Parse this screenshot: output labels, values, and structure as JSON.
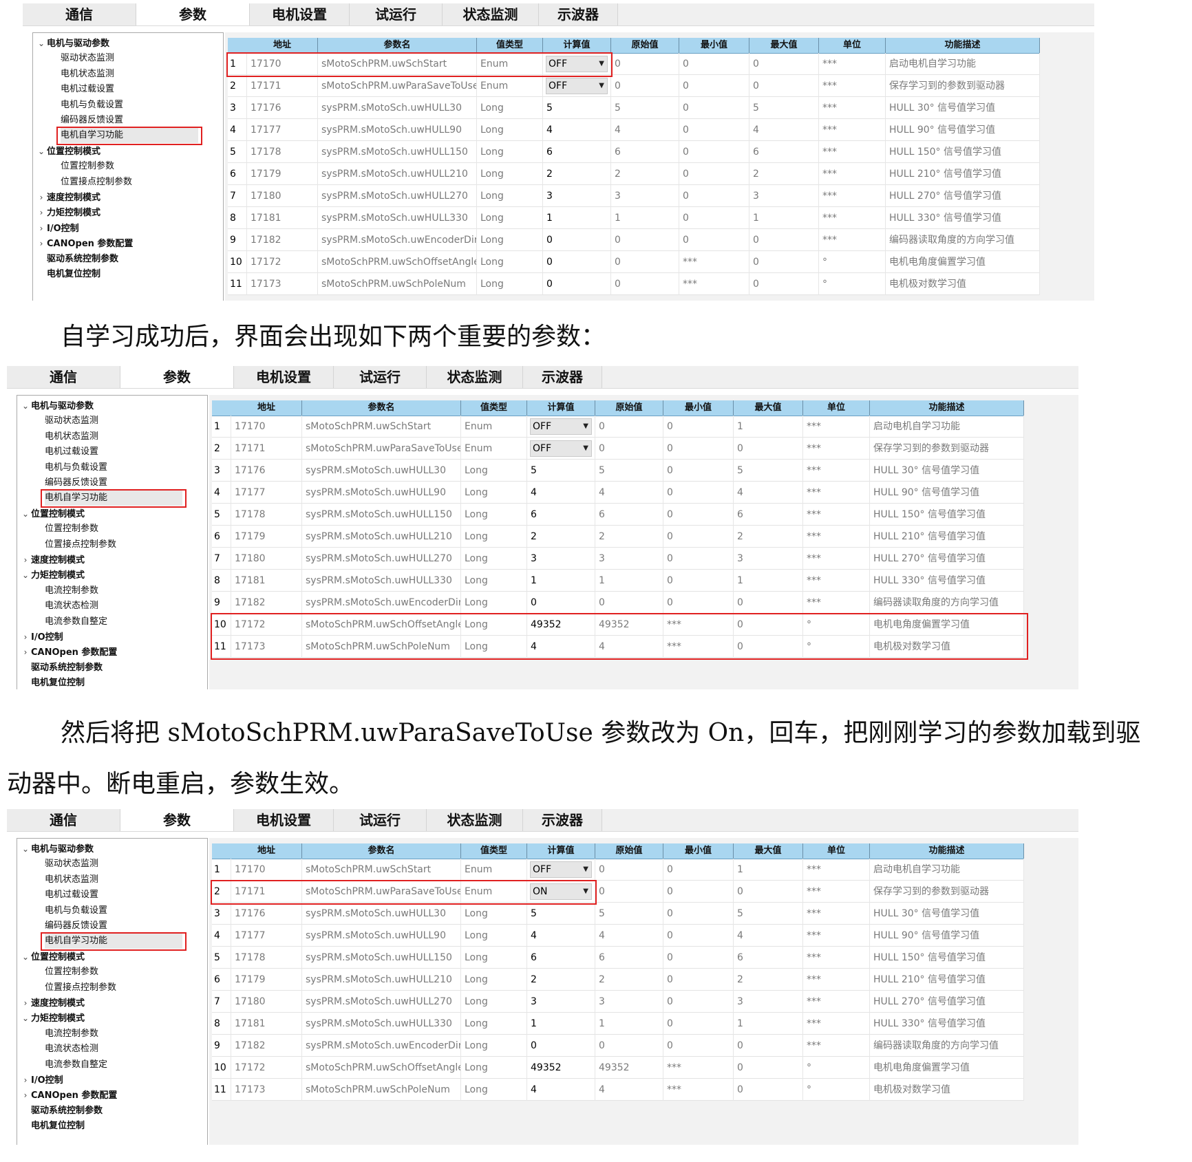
{
  "tabs": [
    "通信",
    "参数",
    "电机设置",
    "试运行",
    "状态监测",
    "示波器"
  ],
  "columns": [
    "地址",
    "参数名",
    "值类型",
    "计算值",
    "原始值",
    "最小值",
    "最大值",
    "单位",
    "功能描述"
  ],
  "paragraphs": {
    "p1": "自学习成功后，界面会出现如下两个重要的参数：",
    "p2": "然后将把 sMotoSchPRM.uwParaSaveToUse  参数改为 On，回车，把刚刚学习的参数加载到驱",
    "p3": "动器中。断电重启，参数生效。"
  },
  "screens": [
    {
      "tree": [
        {
          "label": "电机与驱动参数",
          "level": 0,
          "caret": "down"
        },
        {
          "label": "驱动状态监测",
          "level": 1
        },
        {
          "label": "电机状态监测",
          "level": 1
        },
        {
          "label": "电机过载设置",
          "level": 1
        },
        {
          "label": "电机与负载设置",
          "level": 1
        },
        {
          "label": "编码器反馈设置",
          "level": 1
        },
        {
          "label": "电机自学习功能",
          "level": 1,
          "selected": true
        },
        {
          "label": "位置控制模式",
          "level": 0,
          "caret": "down"
        },
        {
          "label": "位置控制参数",
          "level": 1
        },
        {
          "label": "位置接点控制参数",
          "level": 1
        },
        {
          "label": "速度控制模式",
          "level": 0,
          "caret": "right"
        },
        {
          "label": "力矩控制模式",
          "level": 0,
          "caret": "right"
        },
        {
          "label": "I/O控制",
          "level": 0,
          "caret": "right"
        },
        {
          "label": "CANOpen 参数配置",
          "level": 0,
          "caret": "right"
        },
        {
          "label": "驱动系统控制参数",
          "level": 0
        },
        {
          "label": "电机复位控制",
          "level": 0
        }
      ],
      "rows": [
        [
          "1",
          "17170",
          "sMotoSchPRM.uwSchStart",
          "Enum",
          "OFF",
          "0",
          "0",
          "0",
          "***",
          "启动电机自学习功能"
        ],
        [
          "2",
          "17171",
          "sMotoSchPRM.uwParaSaveToUse",
          "Enum",
          "OFF",
          "0",
          "0",
          "0",
          "***",
          "保存学习到的参数到驱动器"
        ],
        [
          "3",
          "17176",
          "sysPRM.sMotoSch.uwHULL30",
          "Long",
          "5",
          "5",
          "0",
          "5",
          "***",
          "HULL 30° 信号值学习值"
        ],
        [
          "4",
          "17177",
          "sysPRM.sMotoSch.uwHULL90",
          "Long",
          "4",
          "4",
          "0",
          "4",
          "***",
          "HULL 90° 信号值学习值"
        ],
        [
          "5",
          "17178",
          "sysPRM.sMotoSch.uwHULL150",
          "Long",
          "6",
          "6",
          "0",
          "6",
          "***",
          "HULL 150° 信号值学习值"
        ],
        [
          "6",
          "17179",
          "sysPRM.sMotoSch.uwHULL210",
          "Long",
          "2",
          "2",
          "0",
          "2",
          "***",
          "HULL 210° 信号值学习值"
        ],
        [
          "7",
          "17180",
          "sysPRM.sMotoSch.uwHULL270",
          "Long",
          "3",
          "3",
          "0",
          "3",
          "***",
          "HULL 270° 信号值学习值"
        ],
        [
          "8",
          "17181",
          "sysPRM.sMotoSch.uwHULL330",
          "Long",
          "1",
          "1",
          "0",
          "1",
          "***",
          "HULL 330° 信号值学习值"
        ],
        [
          "9",
          "17182",
          "sysPRM.sMotoSch.uwEncoderDir",
          "Long",
          "0",
          "0",
          "0",
          "0",
          "***",
          "编码器读取角度的方向学习值"
        ],
        [
          "10",
          "17172",
          "sMotoSchPRM.uwSchOffsetAngle",
          "Long",
          "0",
          "0",
          "***",
          "0",
          "°",
          "电机电角度偏置学习值"
        ],
        [
          "11",
          "17173",
          "sMotoSchPRM.uwSchPoleNum",
          "Long",
          "0",
          "0",
          "***",
          "0",
          "°",
          "电机极对数学习值"
        ]
      ]
    },
    {
      "tree": [
        {
          "label": "电机与驱动参数",
          "level": 0,
          "caret": "down"
        },
        {
          "label": "驱动状态监测",
          "level": 1
        },
        {
          "label": "电机状态监测",
          "level": 1
        },
        {
          "label": "电机过载设置",
          "level": 1
        },
        {
          "label": "电机与负载设置",
          "level": 1
        },
        {
          "label": "编码器反馈设置",
          "level": 1
        },
        {
          "label": "电机自学习功能",
          "level": 1,
          "selected": true
        },
        {
          "label": "位置控制模式",
          "level": 0,
          "caret": "down"
        },
        {
          "label": "位置控制参数",
          "level": 1
        },
        {
          "label": "位置接点控制参数",
          "level": 1
        },
        {
          "label": "速度控制模式",
          "level": 0,
          "caret": "right"
        },
        {
          "label": "力矩控制模式",
          "level": 0,
          "caret": "down"
        },
        {
          "label": "电流控制参数",
          "level": 1
        },
        {
          "label": "电流状态检测",
          "level": 1
        },
        {
          "label": "电流参数自整定",
          "level": 1
        },
        {
          "label": "I/O控制",
          "level": 0,
          "caret": "right"
        },
        {
          "label": "CANOpen 参数配置",
          "level": 0,
          "caret": "right"
        },
        {
          "label": "驱动系统控制参数",
          "level": 0
        },
        {
          "label": "电机复位控制",
          "level": 0
        }
      ],
      "rows": [
        [
          "1",
          "17170",
          "sMotoSchPRM.uwSchStart",
          "Enum",
          "OFF",
          "0",
          "0",
          "1",
          "***",
          "启动电机自学习功能"
        ],
        [
          "2",
          "17171",
          "sMotoSchPRM.uwParaSaveToUse",
          "Enum",
          "OFF",
          "0",
          "0",
          "0",
          "***",
          "保存学习到的参数到驱动器"
        ],
        [
          "3",
          "17176",
          "sysPRM.sMotoSch.uwHULL30",
          "Long",
          "5",
          "5",
          "0",
          "5",
          "***",
          "HULL 30° 信号值学习值"
        ],
        [
          "4",
          "17177",
          "sysPRM.sMotoSch.uwHULL90",
          "Long",
          "4",
          "4",
          "0",
          "4",
          "***",
          "HULL 90° 信号值学习值"
        ],
        [
          "5",
          "17178",
          "sysPRM.sMotoSch.uwHULL150",
          "Long",
          "6",
          "6",
          "0",
          "6",
          "***",
          "HULL 150° 信号值学习值"
        ],
        [
          "6",
          "17179",
          "sysPRM.sMotoSch.uwHULL210",
          "Long",
          "2",
          "2",
          "0",
          "2",
          "***",
          "HULL 210° 信号值学习值"
        ],
        [
          "7",
          "17180",
          "sysPRM.sMotoSch.uwHULL270",
          "Long",
          "3",
          "3",
          "0",
          "3",
          "***",
          "HULL 270° 信号值学习值"
        ],
        [
          "8",
          "17181",
          "sysPRM.sMotoSch.uwHULL330",
          "Long",
          "1",
          "1",
          "0",
          "1",
          "***",
          "HULL 330° 信号值学习值"
        ],
        [
          "9",
          "17182",
          "sysPRM.sMotoSch.uwEncoderDir",
          "Long",
          "0",
          "0",
          "0",
          "0",
          "***",
          "编码器读取角度的方向学习值"
        ],
        [
          "10",
          "17172",
          "sMotoSchPRM.uwSchOffsetAngle",
          "Long",
          "49352",
          "49352",
          "***",
          "0",
          "°",
          "电机电角度偏置学习值"
        ],
        [
          "11",
          "17173",
          "sMotoSchPRM.uwSchPoleNum",
          "Long",
          "4",
          "4",
          "***",
          "0",
          "°",
          "电机极对数学习值"
        ]
      ]
    },
    {
      "tree": [
        {
          "label": "电机与驱动参数",
          "level": 0,
          "caret": "down"
        },
        {
          "label": "驱动状态监测",
          "level": 1
        },
        {
          "label": "电机状态监测",
          "level": 1
        },
        {
          "label": "电机过载设置",
          "level": 1
        },
        {
          "label": "电机与负载设置",
          "level": 1
        },
        {
          "label": "编码器反馈设置",
          "level": 1
        },
        {
          "label": "电机自学习功能",
          "level": 1,
          "selected": true
        },
        {
          "label": "位置控制模式",
          "level": 0,
          "caret": "down"
        },
        {
          "label": "位置控制参数",
          "level": 1
        },
        {
          "label": "位置接点控制参数",
          "level": 1
        },
        {
          "label": "速度控制模式",
          "level": 0,
          "caret": "right"
        },
        {
          "label": "力矩控制模式",
          "level": 0,
          "caret": "down"
        },
        {
          "label": "电流控制参数",
          "level": 1
        },
        {
          "label": "电流状态检测",
          "level": 1
        },
        {
          "label": "电流参数自整定",
          "level": 1
        },
        {
          "label": "I/O控制",
          "level": 0,
          "caret": "right"
        },
        {
          "label": "CANOpen 参数配置",
          "level": 0,
          "caret": "right"
        },
        {
          "label": "驱动系统控制参数",
          "level": 0
        },
        {
          "label": "电机复位控制",
          "level": 0
        }
      ],
      "rows": [
        [
          "1",
          "17170",
          "sMotoSchPRM.uwSchStart",
          "Enum",
          "OFF",
          "0",
          "0",
          "1",
          "***",
          "启动电机自学习功能"
        ],
        [
          "2",
          "17171",
          "sMotoSchPRM.uwParaSaveToUse",
          "Enum",
          "ON",
          "0",
          "0",
          "0",
          "***",
          "保存学习到的参数到驱动器"
        ],
        [
          "3",
          "17176",
          "sysPRM.sMotoSch.uwHULL30",
          "Long",
          "5",
          "5",
          "0",
          "5",
          "***",
          "HULL 30° 信号值学习值"
        ],
        [
          "4",
          "17177",
          "sysPRM.sMotoSch.uwHULL90",
          "Long",
          "4",
          "4",
          "0",
          "4",
          "***",
          "HULL 90° 信号值学习值"
        ],
        [
          "5",
          "17178",
          "sysPRM.sMotoSch.uwHULL150",
          "Long",
          "6",
          "6",
          "0",
          "6",
          "***",
          "HULL 150° 信号值学习值"
        ],
        [
          "6",
          "17179",
          "sysPRM.sMotoSch.uwHULL210",
          "Long",
          "2",
          "2",
          "0",
          "2",
          "***",
          "HULL 210° 信号值学习值"
        ],
        [
          "7",
          "17180",
          "sysPRM.sMotoSch.uwHULL270",
          "Long",
          "3",
          "3",
          "0",
          "3",
          "***",
          "HULL 270° 信号值学习值"
        ],
        [
          "8",
          "17181",
          "sysPRM.sMotoSch.uwHULL330",
          "Long",
          "1",
          "1",
          "0",
          "1",
          "***",
          "HULL 330° 信号值学习值"
        ],
        [
          "9",
          "17182",
          "sysPRM.sMotoSch.uwEncoderDir",
          "Long",
          "0",
          "0",
          "0",
          "0",
          "***",
          "编码器读取角度的方向学习值"
        ],
        [
          "10",
          "17172",
          "sMotoSchPRM.uwSchOffsetAngle",
          "Long",
          "49352",
          "49352",
          "***",
          "0",
          "°",
          "电机电角度偏置学习值"
        ],
        [
          "11",
          "17173",
          "sMotoSchPRM.uwSchPoleNum",
          "Long",
          "4",
          "4",
          "***",
          "0",
          "°",
          "电机极对数学习值"
        ]
      ]
    }
  ]
}
